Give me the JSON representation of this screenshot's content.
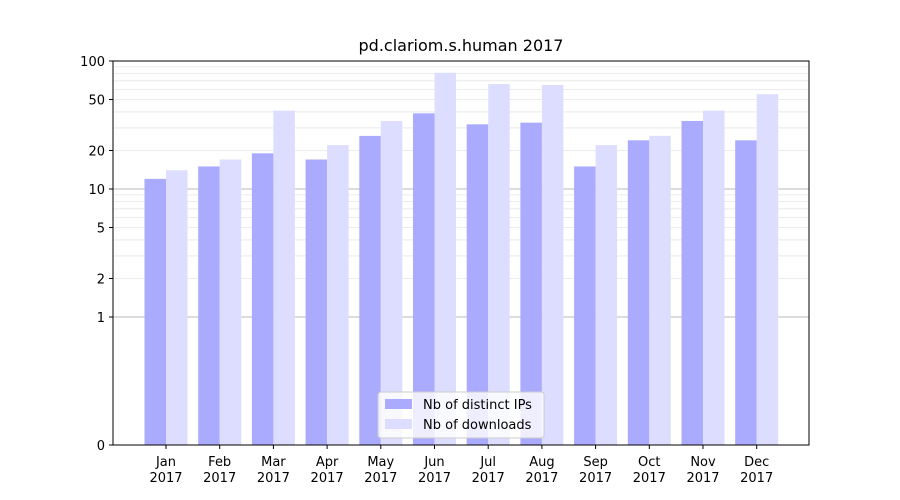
{
  "chart_data": {
    "type": "bar",
    "title": "pd.clariom.s.human 2017",
    "xlabel": "",
    "ylabel": "",
    "y_scale": "symlog",
    "ylim": [
      0,
      100
    ],
    "y_ticks": [
      0,
      1,
      2,
      5,
      10,
      20,
      50,
      100
    ],
    "categories": [
      "Jan\n2017",
      "Feb\n2017",
      "Mar\n2017",
      "Apr\n2017",
      "May\n2017",
      "Jun\n2017",
      "Jul\n2017",
      "Aug\n2017",
      "Sep\n2017",
      "Oct\n2017",
      "Nov\n2017",
      "Dec\n2017"
    ],
    "category_labels": [
      {
        "month": "Jan",
        "year": "2017"
      },
      {
        "month": "Feb",
        "year": "2017"
      },
      {
        "month": "Mar",
        "year": "2017"
      },
      {
        "month": "Apr",
        "year": "2017"
      },
      {
        "month": "May",
        "year": "2017"
      },
      {
        "month": "Jun",
        "year": "2017"
      },
      {
        "month": "Jul",
        "year": "2017"
      },
      {
        "month": "Aug",
        "year": "2017"
      },
      {
        "month": "Sep",
        "year": "2017"
      },
      {
        "month": "Oct",
        "year": "2017"
      },
      {
        "month": "Nov",
        "year": "2017"
      },
      {
        "month": "Dec",
        "year": "2017"
      }
    ],
    "series": [
      {
        "name": "Nb of distinct IPs",
        "color": "#aaaaff",
        "values": [
          12,
          15,
          19,
          17,
          26,
          39,
          32,
          33,
          15,
          24,
          34,
          24
        ]
      },
      {
        "name": "Nb of downloads",
        "color": "#ddddff",
        "values": [
          14,
          17,
          41,
          22,
          34,
          81,
          66,
          65,
          22,
          26,
          41,
          55
        ]
      }
    ],
    "grid": "horizontal, major and minor",
    "legend_position": "bottom-center"
  }
}
